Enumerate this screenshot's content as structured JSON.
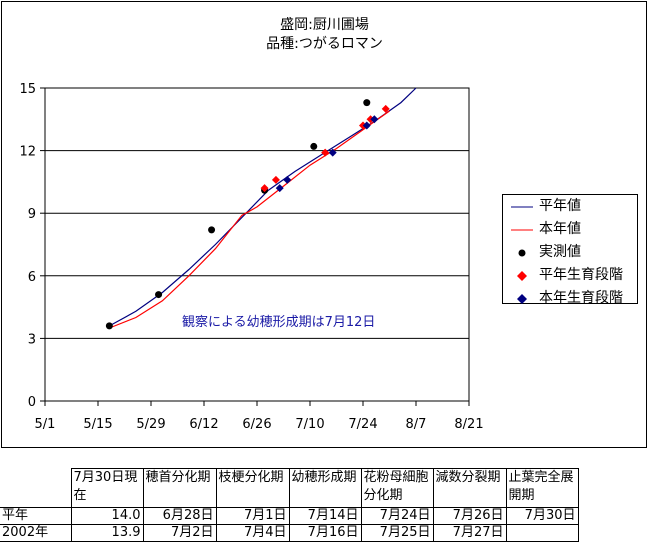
{
  "chart_data": {
    "type": "line",
    "title_line1": "盛岡:厨川圃場",
    "title_line2": "品種:つがるロマン",
    "ylim": [
      0,
      15
    ],
    "y_ticks": [
      "0",
      "3",
      "6",
      "9",
      "12",
      "15"
    ],
    "x_ticks": [
      "5/1",
      "5/15",
      "5/29",
      "6/12",
      "6/26",
      "7/10",
      "7/24",
      "8/7",
      "8/21"
    ],
    "annotation": "観察による幼穂形成期は7月12日",
    "series": [
      {
        "name": "平年値",
        "color": "#000080",
        "x": [
          "5/18",
          "5/25",
          "6/1",
          "6/8",
          "6/15",
          "6/22",
          "6/29",
          "7/6",
          "7/13",
          "7/20",
          "7/27",
          "8/3",
          "8/7"
        ],
        "y": [
          3.6,
          4.3,
          5.2,
          6.3,
          7.5,
          8.8,
          10.1,
          11.0,
          11.8,
          12.6,
          13.4,
          14.3,
          15.0
        ]
      },
      {
        "name": "本年値",
        "color": "#ff0000",
        "x": [
          "5/18",
          "5/25",
          "6/1",
          "6/8",
          "6/15",
          "6/22",
          "6/26",
          "7/3",
          "7/10",
          "7/17",
          "7/24",
          "7/31"
        ],
        "y": [
          3.5,
          4.0,
          4.8,
          6.0,
          7.3,
          8.9,
          9.3,
          10.3,
          11.3,
          12.1,
          13.0,
          13.9
        ]
      },
      {
        "name": "実測値",
        "color": "#000000",
        "x": [
          "5/18",
          "5/31",
          "6/14",
          "6/28",
          "7/11",
          "7/25"
        ],
        "y": [
          3.6,
          5.1,
          8.2,
          10.1,
          12.2,
          14.3
        ]
      },
      {
        "name": "平年生育段階",
        "color": "#ff0000",
        "x": [
          "6/28",
          "7/1",
          "7/14",
          "7/24",
          "7/26",
          "7/30"
        ],
        "y": [
          10.2,
          10.6,
          11.9,
          13.2,
          13.5,
          14.0
        ]
      },
      {
        "name": "本年生育段階",
        "color": "#000080",
        "x": [
          "7/2",
          "7/4",
          "7/16",
          "7/25",
          "7/27"
        ],
        "y": [
          10.2,
          10.6,
          11.9,
          13.2,
          13.5
        ]
      }
    ]
  },
  "table": {
    "headers": [
      "",
      "7月30日現在",
      "穂首分化期",
      "枝梗分化期",
      "幼穂形成期",
      "花粉母細胞分化期",
      "減数分裂期",
      "止葉完全展開期"
    ],
    "rows": [
      [
        "平年",
        "14.0",
        "6月28日",
        "7月1日",
        "7月14日",
        "7月24日",
        "7月26日",
        "7月30日"
      ],
      [
        "2002年",
        "13.9",
        "7月2日",
        "7月4日",
        "7月16日",
        "7月25日",
        "7月27日",
        ""
      ]
    ]
  }
}
